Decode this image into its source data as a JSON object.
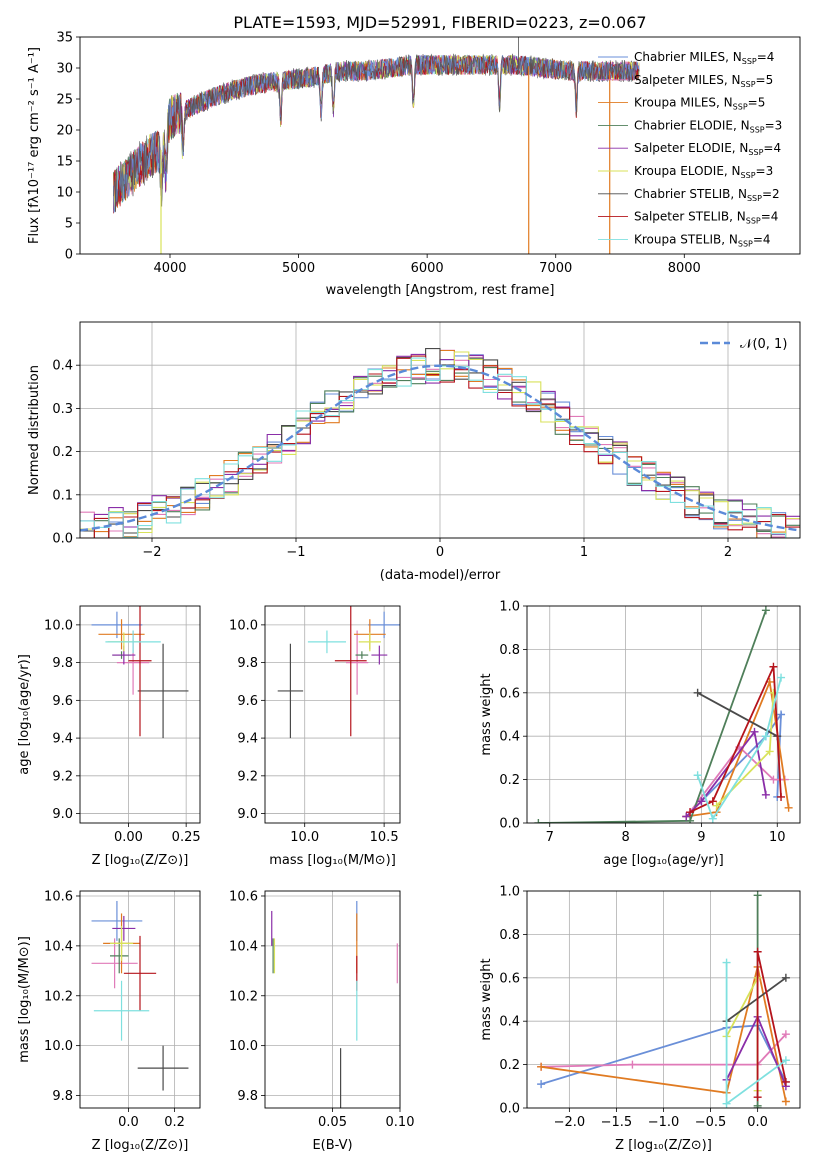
{
  "figure": {
    "title": "PLATE=1593, MJD=52991, FIBERID=0223, z=0.067"
  },
  "models": [
    {
      "name": "Chabrier MILES",
      "nssp": 4,
      "color": "#6a8fd8"
    },
    {
      "name": "Salpeter MILES",
      "nssp": 5,
      "color": "#e07ab8"
    },
    {
      "name": "Kroupa MILES",
      "nssp": 5,
      "color": "#e07b22"
    },
    {
      "name": "Chabrier ELODIE",
      "nssp": 3,
      "color": "#4f7f5a"
    },
    {
      "name": "Salpeter ELODIE",
      "nssp": 4,
      "color": "#8a2ea8"
    },
    {
      "name": "Kroupa ELODIE",
      "nssp": 3,
      "color": "#d8e25a"
    },
    {
      "name": "Chabrier STELIB",
      "nssp": 2,
      "color": "#4a4a4a"
    },
    {
      "name": "Salpeter STELIB",
      "nssp": 4,
      "color": "#b5141c"
    },
    {
      "name": "Kroupa STELIB",
      "nssp": 4,
      "color": "#7fe0df"
    }
  ],
  "chart_data": [
    {
      "id": "spectrum",
      "type": "line",
      "xlabel": "wavelength [Angstrom, rest frame]",
      "ylabel": "Flux [fλ10⁻¹⁷ erg cm⁻² s⁻¹ A⁻¹]",
      "xlim": [
        3300,
        8900
      ],
      "ylim": [
        0,
        35
      ],
      "xticks": [
        "4000",
        "5000",
        "6000",
        "7000",
        "8000"
      ],
      "yticks": [
        "0",
        "5",
        "10",
        "15",
        "20",
        "25",
        "30",
        "35"
      ],
      "grid": false,
      "legend": "right",
      "continuum": {
        "x": [
          3560,
          3700,
          3850,
          3950,
          4000,
          4100,
          4200,
          4300,
          4500,
          4700,
          4900,
          5100,
          5300,
          5500,
          5700,
          5900,
          6100,
          6300,
          6500,
          6700,
          6900,
          7100,
          7300,
          7500,
          7650
        ],
        "y": [
          10,
          13,
          16,
          17,
          22,
          23,
          24,
          25,
          26.5,
          27.5,
          28,
          28.5,
          29.5,
          29.5,
          30,
          30.5,
          30.5,
          30.5,
          30.5,
          30.5,
          30,
          29.5,
          29.5,
          29.5,
          29.5
        ]
      },
      "absorption_features": [
        3933,
        3968,
        4102,
        4861,
        5175,
        5270,
        5893,
        6563,
        7160
      ],
      "spikes": {
        "x": [
          3930,
          6790,
          7420
        ],
        "y": [
          0,
          0,
          0
        ]
      },
      "extra_spike": {
        "x": 6710,
        "y": 35
      }
    },
    {
      "id": "residuals",
      "type": "line",
      "xlabel": "(data-model)/error",
      "ylabel": "Normed distribution",
      "xlim": [
        -2.5,
        2.5
      ],
      "ylim": [
        0,
        0.5
      ],
      "xticks": [
        "−2",
        "−1",
        "0",
        "1",
        "2"
      ],
      "yticks": [
        "0.0",
        "0.1",
        "0.2",
        "0.3",
        "0.4"
      ],
      "grid": true,
      "legend": "top-right",
      "gaussian_label": "𝒩(0, 1)",
      "bin_width": 0.1
    },
    {
      "id": "age-vs-Z",
      "type": "scatter",
      "xlabel": "Z [log₁₀(Z/Z⊙)]",
      "ylabel": "age  [log₁₀(age/yr)]",
      "xlim": [
        -0.21,
        0.31
      ],
      "ylim": [
        8.95,
        10.1
      ],
      "xticks": [
        "0.00",
        "0.25"
      ],
      "yticks": [
        "9.0",
        "9.2",
        "9.4",
        "9.6",
        "9.8",
        "10.0"
      ],
      "grid": true,
      "points": [
        {
          "model": 0,
          "x": -0.05,
          "xerr": 0.11,
          "y": 10.0,
          "yerr": 0.07
        },
        {
          "model": 1,
          "x": 0.02,
          "xerr": 0.07,
          "y": 9.8,
          "yerr": 0.17
        },
        {
          "model": 2,
          "x": -0.03,
          "xerr": 0.1,
          "y": 9.95,
          "yerr": 0.08
        },
        {
          "model": 3,
          "x": -0.03,
          "xerr": 0.04,
          "y": 9.84,
          "yerr": 0.02
        },
        {
          "model": 4,
          "x": -0.02,
          "xerr": 0.05,
          "y": 9.84,
          "yerr": 0.05
        },
        {
          "model": 5,
          "x": -0.02,
          "xerr": 0.07,
          "y": 9.91,
          "yerr": 0.05
        },
        {
          "model": 6,
          "x": 0.15,
          "xerr": 0.11,
          "y": 9.65,
          "yerr": 0.25
        },
        {
          "model": 7,
          "x": 0.05,
          "xerr": 0.05,
          "y": 9.81,
          "yerr": 0.4
        },
        {
          "model": 8,
          "x": 0.02,
          "xerr": 0.12,
          "y": 9.91,
          "yerr": 0.06
        }
      ]
    },
    {
      "id": "age-vs-mass",
      "type": "scatter",
      "xlabel": "mass [log₁₀(M/M⊙)]",
      "ylabel": "",
      "xlim": [
        9.75,
        10.6
      ],
      "ylim": [
        8.95,
        10.1
      ],
      "xticks": [
        "10.0",
        "10.5"
      ],
      "yticks": [
        "9.0",
        "9.2",
        "9.4",
        "9.6",
        "9.8",
        "10.0"
      ],
      "grid": true,
      "points": [
        {
          "model": 0,
          "x": 10.5,
          "xerr": 0.1,
          "y": 10.0,
          "yerr": 0.07
        },
        {
          "model": 1,
          "x": 10.33,
          "xerr": 0.07,
          "y": 9.8,
          "yerr": 0.17
        },
        {
          "model": 2,
          "x": 10.41,
          "xerr": 0.1,
          "y": 9.95,
          "yerr": 0.08
        },
        {
          "model": 3,
          "x": 10.36,
          "xerr": 0.04,
          "y": 9.84,
          "yerr": 0.02
        },
        {
          "model": 4,
          "x": 10.47,
          "xerr": 0.05,
          "y": 9.84,
          "yerr": 0.05
        },
        {
          "model": 5,
          "x": 10.41,
          "xerr": 0.07,
          "y": 9.91,
          "yerr": 0.05
        },
        {
          "model": 6,
          "x": 9.91,
          "xerr": 0.08,
          "y": 9.65,
          "yerr": 0.25
        },
        {
          "model": 7,
          "x": 10.29,
          "xerr": 0.1,
          "y": 9.81,
          "yerr": 0.4
        },
        {
          "model": 8,
          "x": 10.14,
          "xerr": 0.12,
          "y": 9.91,
          "yerr": 0.06
        }
      ]
    },
    {
      "id": "weight-vs-age",
      "type": "line",
      "xlabel": "age  [log₁₀(age/yr)]",
      "ylabel": "mass weight",
      "xlim": [
        6.7,
        10.3
      ],
      "ylim": [
        0,
        1
      ],
      "xticks": [
        "7",
        "8",
        "9",
        "10"
      ],
      "yticks": [
        "0.0",
        "0.2",
        "0.4",
        "0.6",
        "0.8",
        "1.0"
      ],
      "grid": true,
      "series": [
        {
          "model": 0,
          "x": [
            9.0,
            9.85,
            10.05,
            10.0
          ],
          "y": [
            0.1,
            0.4,
            0.5,
            0.12
          ]
        },
        {
          "model": 1,
          "x": [
            8.85,
            9.5,
            9.95,
            10.1
          ],
          "y": [
            0.05,
            0.35,
            0.2,
            0.2
          ]
        },
        {
          "model": 2,
          "x": [
            8.8,
            9.2,
            9.9,
            10.15
          ],
          "y": [
            0.03,
            0.05,
            0.65,
            0.07
          ]
        },
        {
          "model": 3,
          "x": [
            6.85,
            8.85,
            9.85
          ],
          "y": [
            0.0,
            0.01,
            0.98
          ]
        },
        {
          "model": 4,
          "x": [
            8.8,
            9.0,
            9.7,
            9.85
          ],
          "y": [
            0.03,
            0.1,
            0.42,
            0.13
          ]
        },
        {
          "model": 5,
          "x": [
            9.2,
            9.9,
            9.95
          ],
          "y": [
            0.08,
            0.33,
            0.6
          ]
        },
        {
          "model": 6,
          "x": [
            8.95,
            10.0
          ],
          "y": [
            0.6,
            0.4
          ]
        },
        {
          "model": 7,
          "x": [
            8.85,
            9.15,
            9.95,
            10.05
          ],
          "y": [
            0.05,
            0.1,
            0.72,
            0.12
          ]
        },
        {
          "model": 8,
          "x": [
            8.95,
            9.15,
            9.85,
            10.05
          ],
          "y": [
            0.22,
            0.02,
            0.4,
            0.67
          ]
        }
      ]
    },
    {
      "id": "mass-vs-Z",
      "type": "scatter",
      "xlabel": "Z [log₁₀(Z/Z⊙)]",
      "ylabel": "mass [log₁₀(M/M⊙)]",
      "xlim": [
        -0.21,
        0.31
      ],
      "ylim": [
        9.75,
        10.62
      ],
      "xticks": [
        "0.0",
        "0.2"
      ],
      "yticks": [
        "9.8",
        "10.0",
        "10.2",
        "10.4",
        "10.6"
      ],
      "grid": true,
      "points": [
        {
          "model": 0,
          "x": -0.05,
          "xerr": 0.11,
          "y": 10.5,
          "yerr": 0.08
        },
        {
          "model": 1,
          "x": -0.06,
          "xerr": 0.1,
          "y": 10.33,
          "yerr": 0.1
        },
        {
          "model": 2,
          "x": -0.03,
          "xerr": 0.08,
          "y": 10.41,
          "yerr": 0.12
        },
        {
          "model": 3,
          "x": -0.04,
          "xerr": 0.04,
          "y": 10.36,
          "yerr": 0.07
        },
        {
          "model": 4,
          "x": -0.02,
          "xerr": 0.05,
          "y": 10.47,
          "yerr": 0.05
        },
        {
          "model": 5,
          "x": -0.03,
          "xerr": 0.05,
          "y": 10.41,
          "yerr": 0.07
        },
        {
          "model": 6,
          "x": 0.15,
          "xerr": 0.11,
          "y": 9.91,
          "yerr": 0.09
        },
        {
          "model": 7,
          "x": 0.05,
          "xerr": 0.07,
          "y": 10.29,
          "yerr": 0.15
        },
        {
          "model": 8,
          "x": -0.03,
          "xerr": 0.12,
          "y": 10.14,
          "yerr": 0.12
        }
      ]
    },
    {
      "id": "mass-vs-ebv",
      "type": "scatter",
      "xlabel": "E(B-V)",
      "ylabel": "",
      "xlim": [
        0.0,
        0.1
      ],
      "ylim": [
        9.75,
        10.62
      ],
      "xticks": [
        "0.05",
        "0.10"
      ],
      "yticks": [
        "9.8",
        "10.0",
        "10.2",
        "10.4",
        "10.6"
      ],
      "grid": true,
      "points": [
        {
          "model": 0,
          "x": 0.068,
          "xerr": 0.0,
          "y": 10.5,
          "yerr": 0.08
        },
        {
          "model": 1,
          "x": 0.098,
          "xerr": 0.0,
          "y": 10.33,
          "yerr": 0.08
        },
        {
          "model": 2,
          "x": 0.068,
          "xerr": 0.0,
          "y": 10.41,
          "yerr": 0.12
        },
        {
          "model": 3,
          "x": 0.006,
          "xerr": 0.0,
          "y": 10.36,
          "yerr": 0.07
        },
        {
          "model": 4,
          "x": 0.005,
          "xerr": 0.0,
          "y": 10.47,
          "yerr": 0.07
        },
        {
          "model": 5,
          "x": 0.007,
          "xerr": 0.0,
          "y": 10.36,
          "yerr": 0.07
        },
        {
          "model": 6,
          "x": 0.056,
          "xerr": 0.0,
          "y": 9.87,
          "yerr": 0.12
        },
        {
          "model": 7,
          "x": 0.068,
          "xerr": 0.0,
          "y": 10.29,
          "yerr": 0.07
        },
        {
          "model": 8,
          "x": 0.068,
          "xerr": 0.0,
          "y": 10.14,
          "yerr": 0.12
        }
      ]
    },
    {
      "id": "weight-vs-Z",
      "type": "line",
      "xlabel": "Z [log₁₀(Z/Z⊙)]",
      "ylabel": "mass weight",
      "xlim": [
        -2.45,
        0.45
      ],
      "ylim": [
        0,
        1
      ],
      "xticks": [
        "−2.0",
        "−1.5",
        "−1.0",
        "−0.5",
        "0.0"
      ],
      "yticks": [
        "0.0",
        "0.2",
        "0.4",
        "0.6",
        "0.8",
        "1.0"
      ],
      "grid": true,
      "series": [
        {
          "model": 0,
          "x": [
            -2.3,
            -0.33,
            0.0,
            0.3
          ],
          "y": [
            0.11,
            0.37,
            0.38,
            0.12
          ]
        },
        {
          "model": 1,
          "x": [
            -2.3,
            -1.33,
            0.0,
            0.3
          ],
          "y": [
            0.19,
            0.2,
            0.2,
            0.34
          ]
        },
        {
          "model": 2,
          "x": [
            -2.3,
            -0.33,
            0.0,
            0.3
          ],
          "y": [
            0.19,
            0.07,
            0.65,
            0.03
          ]
        },
        {
          "model": 3,
          "x": [
            0.0,
            0.0,
            0.0
          ],
          "y": [
            0.0,
            0.01,
            0.98
          ]
        },
        {
          "model": 4,
          "x": [
            -0.33,
            0.0,
            0.3
          ],
          "y": [
            0.13,
            0.42,
            0.1
          ]
        },
        {
          "model": 5,
          "x": [
            -0.33,
            0.0,
            0.0
          ],
          "y": [
            0.33,
            0.6,
            0.08
          ]
        },
        {
          "model": 6,
          "x": [
            -0.33,
            0.3
          ],
          "y": [
            0.4,
            0.6
          ]
        },
        {
          "model": 7,
          "x": [
            0.0,
            0.0,
            0.3
          ],
          "y": [
            0.05,
            0.72,
            0.12
          ]
        },
        {
          "model": 8,
          "x": [
            -0.33,
            -0.33,
            0.3
          ],
          "y": [
            0.67,
            0.02,
            0.22
          ]
        }
      ]
    }
  ]
}
